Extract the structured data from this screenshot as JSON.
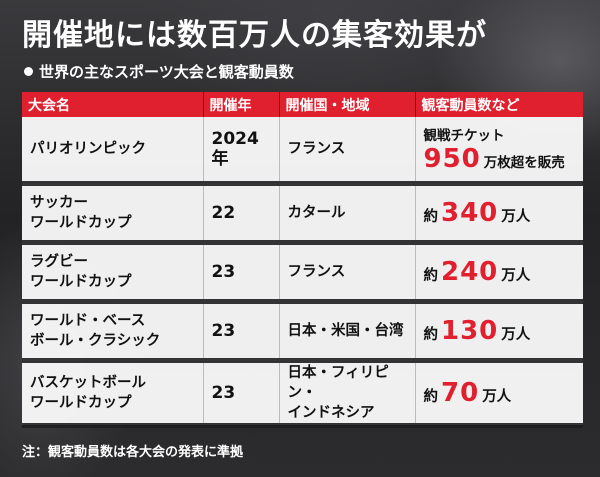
{
  "title": "開催地には数百万人の集客効果が",
  "subtitle": "世界の主なスポーツ大会と観客動員数",
  "colors": {
    "accent": "#e0202e"
  },
  "table": {
    "headers": [
      "大会名",
      "開催年",
      "開催国・地域",
      "観客動員数など"
    ],
    "rows": [
      {
        "name": "パリオリンピック",
        "year": "2024年",
        "country": "フランス",
        "aud_label": "観戦チケット",
        "aud_prefix": "",
        "aud_value": "950",
        "aud_suffix": "万枚超を販売"
      },
      {
        "name": "サッカー\nワールドカップ",
        "year": "22",
        "country": "カタール",
        "aud_label": "",
        "aud_prefix": "約",
        "aud_value": "340",
        "aud_suffix": "万人"
      },
      {
        "name": "ラグビー\nワールドカップ",
        "year": "23",
        "country": "フランス",
        "aud_label": "",
        "aud_prefix": "約",
        "aud_value": "240",
        "aud_suffix": "万人"
      },
      {
        "name": "ワールド・ベース\nボール・クラシック",
        "year": "23",
        "country": "日本・米国・台湾",
        "aud_label": "",
        "aud_prefix": "約",
        "aud_value": "130",
        "aud_suffix": "万人"
      },
      {
        "name": "バスケットボール\nワールドカップ",
        "year": "23",
        "country": "日本・フィリピン・\nインドネシア",
        "aud_label": "",
        "aud_prefix": "約",
        "aud_value": "70",
        "aud_suffix": "万人"
      }
    ]
  },
  "note": "注：観客動員数は各大会の発表に準拠"
}
